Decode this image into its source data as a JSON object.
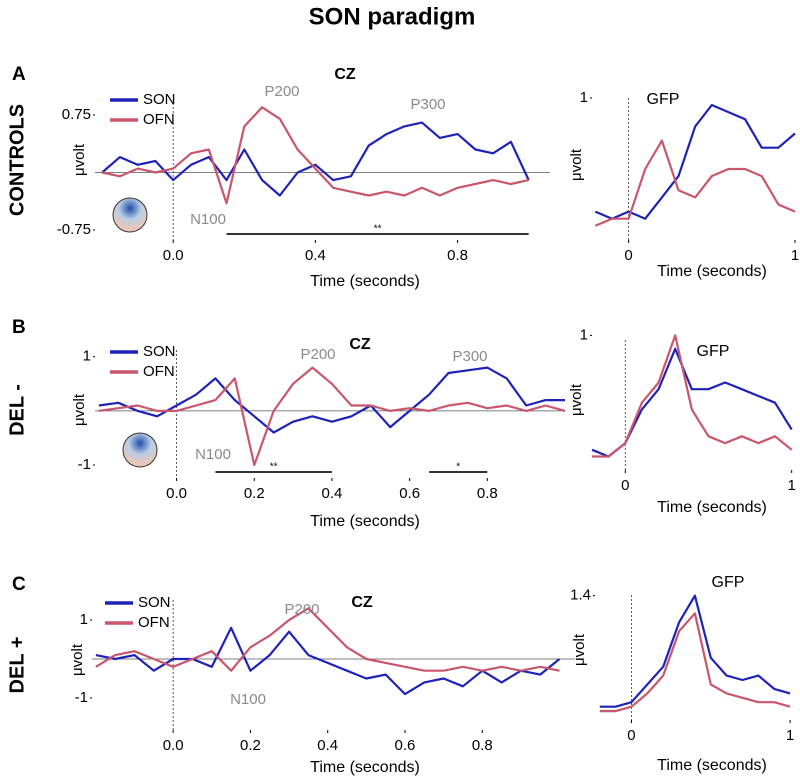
{
  "title": "SON paradigm",
  "chart_data": [
    {
      "type": "line",
      "panel": "A",
      "group": "CONTROLS",
      "title": "CZ",
      "xlabel": "Time (seconds)",
      "ylabel": "μvolt",
      "x": [
        -0.2,
        -0.15,
        -0.1,
        -0.05,
        0,
        0.05,
        0.1,
        0.15,
        0.2,
        0.25,
        0.3,
        0.35,
        0.4,
        0.45,
        0.5,
        0.55,
        0.6,
        0.65,
        0.7,
        0.75,
        0.8,
        0.85,
        0.9,
        0.95,
        1.0
      ],
      "series": [
        {
          "name": "SON",
          "color": "#1f22b8",
          "values": [
            0.0,
            0.2,
            0.1,
            0.15,
            -0.1,
            0.1,
            0.2,
            -0.1,
            0.3,
            -0.1,
            -0.3,
            0.0,
            0.1,
            -0.1,
            -0.05,
            0.35,
            0.5,
            0.6,
            0.65,
            0.45,
            0.5,
            0.3,
            0.25,
            0.4,
            -0.1
          ]
        },
        {
          "name": "OFN",
          "color": "#c9566c",
          "values": [
            0.0,
            -0.05,
            0.05,
            0.0,
            0.05,
            0.25,
            0.3,
            -0.4,
            0.6,
            0.85,
            0.7,
            0.3,
            0.05,
            -0.2,
            -0.25,
            -0.3,
            -0.25,
            -0.3,
            -0.2,
            -0.3,
            -0.2,
            -0.15,
            -0.1,
            -0.15,
            -0.1
          ]
        }
      ],
      "xlim": [
        -0.22,
        1.06
      ],
      "ylim": [
        -0.88,
        1.14
      ],
      "xticks": [
        {
          "value": 0,
          "label": "0.0"
        },
        0.4,
        0.8
      ],
      "yticks": [
        0.75,
        -0.75
      ],
      "vline": 0,
      "hline": 0,
      "legend": "upper left",
      "annotations": [
        "P200",
        "P300",
        "N100"
      ],
      "sig_bars": [
        {
          "start": 0.15,
          "end": 1.0,
          "label": "**"
        }
      ]
    },
    {
      "type": "line",
      "title": "GFP",
      "xlabel": "Time (seconds)",
      "ylabel": "μvolt",
      "x": [
        -0.2,
        -0.1,
        0,
        0.1,
        0.2,
        0.3,
        0.4,
        0.5,
        0.6,
        0.7,
        0.8,
        0.9,
        1.0
      ],
      "series": [
        {
          "name": "SON",
          "color": "#1f22b8",
          "values": [
            0.2,
            0.15,
            0.2,
            0.15,
            0.3,
            0.45,
            0.8,
            0.95,
            0.9,
            0.85,
            0.65,
            0.65,
            0.75
          ]
        },
        {
          "name": "OFN",
          "color": "#c9566c",
          "values": [
            0.1,
            0.15,
            0.15,
            0.5,
            0.7,
            0.35,
            0.3,
            0.45,
            0.5,
            0.5,
            0.45,
            0.25,
            0.2
          ]
        }
      ],
      "xlim": [
        -0.22,
        1.0
      ],
      "ylim": [
        0,
        1.07
      ],
      "xticks": [
        0,
        1
      ],
      "yticks": [
        1
      ],
      "vline": 0
    },
    {
      "type": "line",
      "panel": "B",
      "group": "DEL -",
      "title": "CZ",
      "xlabel": "Time (seconds)",
      "ylabel": "μvolt",
      "x": [
        -0.2,
        -0.15,
        -0.1,
        -0.05,
        0,
        0.05,
        0.1,
        0.15,
        0.2,
        0.25,
        0.3,
        0.35,
        0.4,
        0.45,
        0.5,
        0.55,
        0.6,
        0.65,
        0.7,
        0.75,
        0.8,
        0.85,
        0.9,
        0.95,
        1.0
      ],
      "series": [
        {
          "name": "SON",
          "color": "#1f22b8",
          "values": [
            0.1,
            0.15,
            0.0,
            -0.1,
            0.1,
            0.3,
            0.6,
            0.2,
            -0.1,
            -0.4,
            -0.2,
            -0.1,
            -0.2,
            -0.1,
            0.1,
            -0.3,
            0.0,
            0.3,
            0.7,
            0.75,
            0.8,
            0.6,
            0.1,
            0.2,
            0.2
          ]
        },
        {
          "name": "OFN",
          "color": "#c9566c",
          "values": [
            0.0,
            0.05,
            0.1,
            0.0,
            0.0,
            0.1,
            0.2,
            0.6,
            -1.0,
            0.0,
            0.5,
            0.8,
            0.5,
            0.1,
            0.1,
            0.0,
            0.05,
            0.0,
            0.1,
            0.15,
            0.05,
            0.1,
            0.0,
            0.1,
            0.0
          ]
        }
      ],
      "xlim": [
        -0.21,
        1.0
      ],
      "ylim": [
        -1.24,
        1.31
      ],
      "xticks": [
        {
          "value": 0,
          "label": "0.0"
        },
        0.2,
        0.4,
        0.6,
        0.8
      ],
      "yticks": [
        1,
        -1
      ],
      "vline": 0,
      "hline": 0,
      "legend": "upper left",
      "annotations": [
        "P200",
        "P300",
        "N100"
      ],
      "sig_bars": [
        {
          "start": 0.1,
          "end": 0.4,
          "label": "**"
        },
        {
          "start": 0.65,
          "end": 0.8,
          "label": "*"
        }
      ]
    },
    {
      "type": "line",
      "title": "GFP",
      "xlabel": "Time (seconds)",
      "ylabel": "μvolt",
      "x": [
        -0.2,
        -0.1,
        0,
        0.1,
        0.2,
        0.3,
        0.4,
        0.5,
        0.6,
        0.7,
        0.8,
        0.9,
        1.0
      ],
      "series": [
        {
          "name": "SON",
          "color": "#1f22b8",
          "values": [
            0.15,
            0.1,
            0.2,
            0.45,
            0.6,
            0.9,
            0.6,
            0.6,
            0.65,
            0.6,
            0.55,
            0.5,
            0.3
          ]
        },
        {
          "name": "OFN",
          "color": "#c9566c",
          "values": [
            0.1,
            0.1,
            0.2,
            0.5,
            0.65,
            1.0,
            0.45,
            0.25,
            0.2,
            0.25,
            0.2,
            0.25,
            0.15
          ]
        }
      ],
      "xlim": [
        -0.2,
        1.02
      ],
      "ylim": [
        0,
        1.04
      ],
      "xticks": [
        0,
        1
      ],
      "yticks": [
        1
      ],
      "vline": 0
    },
    {
      "type": "line",
      "panel": "C",
      "group": "DEL +",
      "title": "CZ",
      "xlabel": "Time (seconds)",
      "ylabel": "μvolt",
      "x": [
        -0.2,
        -0.15,
        -0.1,
        -0.05,
        0,
        0.05,
        0.1,
        0.15,
        0.2,
        0.25,
        0.3,
        0.35,
        0.4,
        0.45,
        0.5,
        0.55,
        0.6,
        0.65,
        0.7,
        0.75,
        0.8,
        0.85,
        0.9,
        0.95,
        1.0
      ],
      "series": [
        {
          "name": "SON",
          "color": "#1f22b8",
          "values": [
            0.1,
            0.0,
            0.1,
            -0.3,
            0.0,
            0.0,
            -0.2,
            0.8,
            -0.3,
            0.1,
            0.7,
            0.1,
            -0.1,
            -0.3,
            -0.5,
            -0.4,
            -0.9,
            -0.6,
            -0.5,
            -0.7,
            -0.3,
            -0.6,
            -0.3,
            -0.4,
            0.0
          ]
        },
        {
          "name": "OFN",
          "color": "#c9566c",
          "values": [
            -0.2,
            0.1,
            0.2,
            0.0,
            -0.2,
            0.0,
            0.2,
            -0.3,
            0.3,
            0.6,
            1.0,
            1.3,
            0.8,
            0.3,
            0.0,
            -0.1,
            -0.2,
            -0.3,
            -0.3,
            -0.2,
            -0.3,
            -0.2,
            -0.3,
            -0.2,
            -0.3
          ]
        }
      ],
      "xlim": [
        -0.21,
        1.04
      ],
      "ylim": [
        -1.82,
        1.77
      ],
      "xticks": [
        {
          "value": 0,
          "label": "0.0"
        },
        0.2,
        0.4,
        0.6,
        0.8
      ],
      "yticks": [
        1,
        -1
      ],
      "vline": 0,
      "hline": 0,
      "legend": "upper left",
      "annotations": [
        "P200",
        "N100"
      ]
    },
    {
      "type": "line",
      "title": "GFP",
      "xlabel": "Time (seconds)",
      "ylabel": "μvolt",
      "x": [
        -0.2,
        -0.1,
        0,
        0.1,
        0.2,
        0.3,
        0.4,
        0.5,
        0.6,
        0.7,
        0.8,
        0.9,
        1.0
      ],
      "series": [
        {
          "name": "SON",
          "color": "#1f22b8",
          "values": [
            0.15,
            0.15,
            0.2,
            0.4,
            0.6,
            1.1,
            1.4,
            0.7,
            0.5,
            0.45,
            0.5,
            0.35,
            0.3
          ]
        },
        {
          "name": "OFN",
          "color": "#c9566c",
          "values": [
            0.1,
            0.1,
            0.15,
            0.3,
            0.5,
            1.0,
            1.2,
            0.4,
            0.3,
            0.25,
            0.2,
            0.2,
            0.15
          ]
        }
      ],
      "xlim": [
        -0.23,
        1.05
      ],
      "ylim": [
        0,
        1.52
      ],
      "xticks": [
        0,
        1
      ],
      "yticks": [
        1.4
      ],
      "vline": 0
    }
  ]
}
